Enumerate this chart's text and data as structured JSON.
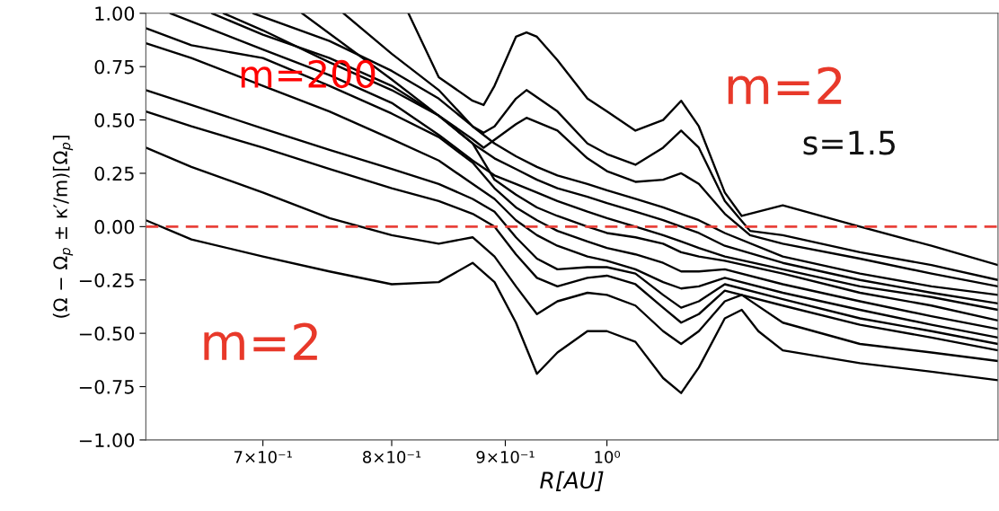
{
  "chart_data": {
    "type": "line",
    "xlabel": "R[AU]",
    "ylabel": "(Ω − Ω$_{p}$ ± κ′/m)[Ω$_{p}$]",
    "log": "x",
    "xlim": [
      0.62,
      1.5
    ],
    "xticks": [
      {
        "value": 0.7,
        "label": "7×10⁻¹"
      },
      {
        "value": 0.8,
        "label": "8×10⁻¹"
      },
      {
        "value": 0.9,
        "label": "9×10⁻¹"
      },
      {
        "value": 1.0,
        "label": "10⁰"
      }
    ],
    "ylim": [
      -1.0,
      1.0
    ],
    "yticks": [
      {
        "value": -1.0,
        "label": "−1.00"
      },
      {
        "value": -0.75,
        "label": "−0.75"
      },
      {
        "value": -0.5,
        "label": "−0.50"
      },
      {
        "value": -0.25,
        "label": "−0.25"
      },
      {
        "value": 0.0,
        "label": "0.00"
      },
      {
        "value": 0.25,
        "label": "0.25"
      },
      {
        "value": 0.5,
        "label": "0.50"
      },
      {
        "value": 0.75,
        "label": "0.75"
      },
      {
        "value": 1.0,
        "label": "1.00"
      }
    ],
    "grid": false,
    "ref_lines": [
      {
        "axis": "y",
        "value": 0,
        "color": "#e8413a",
        "line_style": "dashed"
      }
    ],
    "annotations": [
      "m=200",
      "m=2",
      "s=1.5",
      "m=2"
    ],
    "series": [
      {
        "color": "#000000",
        "x": [
          0.814,
          0.84,
          0.87,
          0.88,
          0.89,
          0.91,
          0.92,
          0.93,
          0.95,
          0.98,
          1.0,
          1.03,
          1.06,
          1.08,
          1.1,
          1.13,
          1.15,
          1.2,
          1.3,
          1.4,
          1.5
        ],
        "values": [
          1.0,
          0.7,
          0.59,
          0.57,
          0.66,
          0.89,
          0.91,
          0.89,
          0.78,
          0.6,
          0.54,
          0.45,
          0.5,
          0.59,
          0.47,
          0.16,
          0.05,
          0.1,
          0.0,
          -0.09,
          -0.18
        ]
      },
      {
        "color": "#000000",
        "x": [
          0.761,
          0.8,
          0.84,
          0.87,
          0.88,
          0.89,
          0.91,
          0.92,
          0.95,
          0.98,
          1.0,
          1.03,
          1.06,
          1.08,
          1.1,
          1.13,
          1.16,
          1.2,
          1.3,
          1.4,
          1.5
        ],
        "values": [
          1.0,
          0.81,
          0.64,
          0.47,
          0.44,
          0.47,
          0.6,
          0.64,
          0.54,
          0.39,
          0.34,
          0.29,
          0.37,
          0.45,
          0.37,
          0.12,
          -0.02,
          -0.04,
          -0.12,
          -0.18,
          -0.25
        ]
      },
      {
        "color": "#000000",
        "x": [
          0.729,
          0.8,
          0.84,
          0.87,
          0.88,
          0.91,
          0.92,
          0.95,
          0.98,
          1.0,
          1.03,
          1.06,
          1.08,
          1.1,
          1.13,
          1.16,
          1.2,
          1.3,
          1.4,
          1.5
        ],
        "values": [
          1.0,
          0.69,
          0.52,
          0.41,
          0.37,
          0.48,
          0.51,
          0.45,
          0.32,
          0.26,
          0.21,
          0.22,
          0.25,
          0.2,
          0.06,
          -0.04,
          -0.08,
          -0.15,
          -0.22,
          -0.28
        ]
      },
      {
        "color": "#000000",
        "x": [
          0.693,
          0.75,
          0.8,
          0.84,
          0.87,
          0.89,
          0.91,
          0.93,
          0.95,
          0.98,
          1.0,
          1.03,
          1.06,
          1.08,
          1.1,
          1.13,
          1.2,
          1.3,
          1.4,
          1.5
        ],
        "values": [
          1.0,
          0.87,
          0.73,
          0.6,
          0.47,
          0.39,
          0.33,
          0.28,
          0.24,
          0.2,
          0.17,
          0.13,
          0.09,
          0.06,
          0.03,
          -0.03,
          -0.14,
          -0.22,
          -0.28,
          -0.32
        ]
      },
      {
        "color": "#000000",
        "x": [
          0.664,
          0.7,
          0.75,
          0.8,
          0.84,
          0.87,
          0.89,
          0.91,
          0.93,
          0.95,
          0.98,
          1.0,
          1.03,
          1.06,
          1.08,
          1.1,
          1.13,
          1.2,
          1.3,
          1.4,
          1.5
        ],
        "values": [
          1.0,
          0.9,
          0.79,
          0.66,
          0.52,
          0.39,
          0.32,
          0.27,
          0.22,
          0.18,
          0.14,
          0.11,
          0.07,
          0.03,
          0.0,
          -0.03,
          -0.09,
          -0.17,
          -0.25,
          -0.31,
          -0.36
        ]
      },
      {
        "color": "#000000",
        "x": [
          0.636,
          0.7,
          0.75,
          0.8,
          0.84,
          0.87,
          0.89,
          0.91,
          0.93,
          0.95,
          0.98,
          1.0,
          1.03,
          1.06,
          1.08,
          1.1,
          1.13,
          1.2,
          1.3,
          1.4,
          1.5
        ],
        "values": [
          1.0,
          0.83,
          0.71,
          0.58,
          0.43,
          0.31,
          0.24,
          0.2,
          0.16,
          0.12,
          0.07,
          0.04,
          0.0,
          -0.04,
          -0.07,
          -0.1,
          -0.14,
          -0.2,
          -0.28,
          -0.33,
          -0.39
        ]
      },
      {
        "color": "#000000",
        "x": [
          0.672,
          0.7,
          0.75,
          0.8,
          0.84,
          0.87,
          0.89,
          0.91,
          0.93,
          0.95,
          0.98,
          1.0,
          1.03,
          1.06,
          1.08,
          1.1,
          1.13,
          1.2,
          1.3,
          1.4,
          1.5
        ],
        "values": [
          1.0,
          0.92,
          0.77,
          0.64,
          0.52,
          0.39,
          0.22,
          0.15,
          0.09,
          0.05,
          0.0,
          -0.03,
          -0.05,
          -0.08,
          -0.12,
          -0.14,
          -0.16,
          -0.22,
          -0.31,
          -0.37,
          -0.44
        ]
      },
      {
        "color": "#000000",
        "x": [
          0.62,
          0.65,
          0.7,
          0.75,
          0.8,
          0.84,
          0.87,
          0.89,
          0.91,
          0.93,
          0.95,
          0.98,
          1.0,
          1.03,
          1.06,
          1.08,
          1.1,
          1.13,
          1.2,
          1.3,
          1.4,
          1.5
        ],
        "values": [
          0.93,
          0.85,
          0.79,
          0.66,
          0.53,
          0.42,
          0.3,
          0.18,
          0.09,
          0.03,
          -0.02,
          -0.07,
          -0.1,
          -0.13,
          -0.17,
          -0.21,
          -0.21,
          -0.2,
          -0.27,
          -0.35,
          -0.42,
          -0.48
        ]
      },
      {
        "color": "#000000",
        "x": [
          0.62,
          0.65,
          0.7,
          0.75,
          0.8,
          0.84,
          0.87,
          0.89,
          0.91,
          0.93,
          0.95,
          0.98,
          1.0,
          1.03,
          1.06,
          1.08,
          1.1,
          1.13,
          1.2,
          1.3,
          1.4,
          1.5
        ],
        "values": [
          0.86,
          0.79,
          0.66,
          0.54,
          0.41,
          0.31,
          0.2,
          0.13,
          0.03,
          -0.04,
          -0.09,
          -0.14,
          -0.16,
          -0.2,
          -0.26,
          -0.29,
          -0.28,
          -0.24,
          -0.31,
          -0.39,
          -0.46,
          -0.52
        ]
      },
      {
        "color": "#000000",
        "x": [
          0.62,
          0.65,
          0.7,
          0.75,
          0.8,
          0.84,
          0.87,
          0.89,
          0.91,
          0.93,
          0.95,
          0.98,
          1.0,
          1.03,
          1.06,
          1.08,
          1.1,
          1.13,
          1.2,
          1.3,
          1.4,
          1.5
        ],
        "values": [
          0.64,
          0.57,
          0.46,
          0.36,
          0.27,
          0.2,
          0.13,
          0.07,
          -0.05,
          -0.15,
          -0.2,
          -0.19,
          -0.19,
          -0.22,
          -0.32,
          -0.38,
          -0.35,
          -0.27,
          -0.34,
          -0.43,
          -0.49,
          -0.55
        ]
      },
      {
        "color": "#000000",
        "x": [
          0.62,
          0.65,
          0.7,
          0.75,
          0.8,
          0.84,
          0.87,
          0.89,
          0.91,
          0.93,
          0.95,
          0.98,
          1.0,
          1.03,
          1.06,
          1.08,
          1.1,
          1.13,
          1.2,
          1.3,
          1.4,
          1.5
        ],
        "values": [
          0.54,
          0.47,
          0.37,
          0.27,
          0.18,
          0.12,
          0.06,
          0.0,
          -0.13,
          -0.24,
          -0.28,
          -0.24,
          -0.23,
          -0.27,
          -0.38,
          -0.45,
          -0.41,
          -0.3,
          -0.37,
          -0.46,
          -0.52,
          -0.58
        ]
      },
      {
        "color": "#000000",
        "x": [
          0.62,
          0.65,
          0.7,
          0.75,
          0.8,
          0.84,
          0.87,
          0.89,
          0.91,
          0.93,
          0.95,
          0.98,
          1.0,
          1.03,
          1.06,
          1.08,
          1.1,
          1.13,
          1.15,
          1.2,
          1.3,
          1.4,
          1.5
        ],
        "values": [
          0.37,
          0.28,
          0.16,
          0.04,
          -0.04,
          -0.08,
          -0.05,
          -0.14,
          -0.28,
          -0.41,
          -0.35,
          -0.31,
          -0.32,
          -0.37,
          -0.49,
          -0.55,
          -0.49,
          -0.35,
          -0.32,
          -0.45,
          -0.55,
          -0.59,
          -0.63
        ]
      },
      {
        "color": "#000000",
        "x": [
          0.62,
          0.65,
          0.7,
          0.75,
          0.8,
          0.84,
          0.87,
          0.89,
          0.91,
          0.93,
          0.95,
          0.98,
          1.0,
          1.03,
          1.06,
          1.08,
          1.1,
          1.13,
          1.15,
          1.17,
          1.2,
          1.3,
          1.4,
          1.5
        ],
        "values": [
          0.03,
          -0.06,
          -0.14,
          -0.21,
          -0.27,
          -0.26,
          -0.17,
          -0.26,
          -0.45,
          -0.69,
          -0.59,
          -0.49,
          -0.49,
          -0.54,
          -0.71,
          -0.78,
          -0.66,
          -0.43,
          -0.39,
          -0.49,
          -0.58,
          -0.64,
          -0.68,
          -0.72
        ]
      }
    ]
  }
}
